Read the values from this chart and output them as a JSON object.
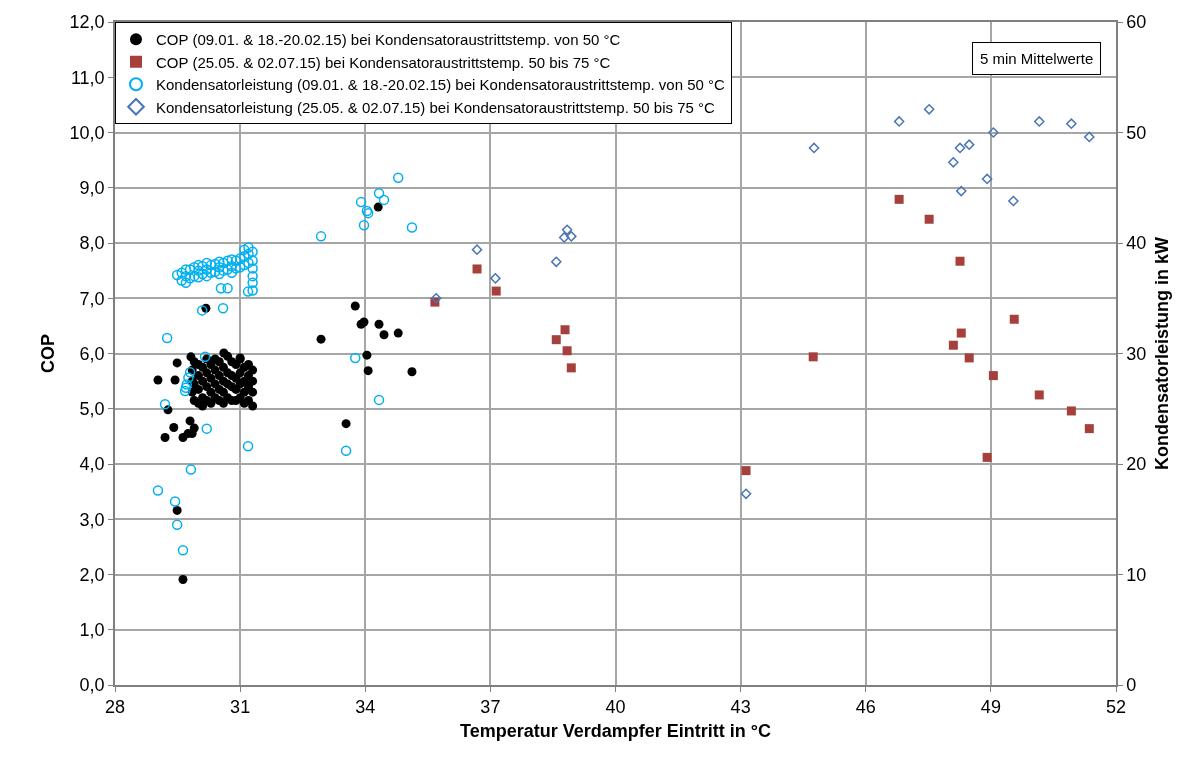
{
  "chart_data": {
    "type": "scatter",
    "xlabel": "Temperatur Verdampfer Eintritt in °C",
    "ylabel": "COP",
    "y2label": "Kondensatorleistung in kW",
    "xlim": [
      28,
      52
    ],
    "xticks": [
      28,
      31,
      34,
      37,
      40,
      43,
      46,
      49,
      52
    ],
    "ylim": [
      0,
      12
    ],
    "yticks": [
      {
        "value": 0,
        "label": "0,0"
      },
      {
        "value": 1,
        "label": "1,0"
      },
      {
        "value": 2,
        "label": "2,0"
      },
      {
        "value": 3,
        "label": "3,0"
      },
      {
        "value": 4,
        "label": "4,0"
      },
      {
        "value": 5,
        "label": "5,0"
      },
      {
        "value": 6,
        "label": "6,0"
      },
      {
        "value": 7,
        "label": "7,0"
      },
      {
        "value": 8,
        "label": "8,0"
      },
      {
        "value": 9,
        "label": "9,0"
      },
      {
        "value": 10,
        "label": "10,0"
      },
      {
        "value": 11,
        "label": "11,0"
      },
      {
        "value": 12,
        "label": "12,0"
      }
    ],
    "y2lim": [
      0,
      60
    ],
    "y2ticks": [
      0,
      10,
      20,
      30,
      40,
      50,
      60
    ],
    "grid": true,
    "legend": "top left",
    "annotations": [
      "5 min Mittelwerte"
    ],
    "series": [
      {
        "name": "COP (09.01. & 18.-20.02.15) bei Kondensatoraustrittstemp. von 50 °C",
        "color": "#000000",
        "marker": "circle",
        "x": [
          29.85,
          29.85,
          29.85,
          29.9,
          29.9,
          29.9,
          30.0,
          30.0,
          30.0,
          30.0,
          30.1,
          30.1,
          30.1,
          30.1,
          30.2,
          30.2,
          30.2,
          30.2,
          30.3,
          30.3,
          30.3,
          30.3,
          30.4,
          30.4,
          30.4,
          30.4,
          30.5,
          30.5,
          30.5,
          30.5,
          30.6,
          30.6,
          30.6,
          30.6,
          30.7,
          30.7,
          30.7,
          30.7,
          30.8,
          30.8,
          30.8,
          30.8,
          30.9,
          30.9,
          30.9,
          30.9,
          31.0,
          31.0,
          31.0,
          31.0,
          31.1,
          31.1,
          31.1,
          31.1,
          31.2,
          31.2,
          31.2,
          31.2,
          31.3,
          31.3,
          31.3,
          31.3,
          29.75,
          29.85,
          29.9,
          29.03,
          29.44,
          29.49,
          29.82,
          30.61,
          31.0,
          29.2,
          29.41,
          29.8,
          29.63,
          29.27,
          29.49,
          29.63,
          30.18,
          34.31,
          33.76,
          33.9,
          33.97,
          34.33,
          34.45,
          34.79,
          32.94,
          34.04,
          34.07,
          35.12,
          33.54
        ],
        "values": [
          5.3,
          5.5,
          5.7,
          5.15,
          5.45,
          5.85,
          5.1,
          5.35,
          5.6,
          5.8,
          5.2,
          5.5,
          5.75,
          5.05,
          5.15,
          5.4,
          5.65,
          5.9,
          5.1,
          5.3,
          5.55,
          5.8,
          5.2,
          5.45,
          5.7,
          5.9,
          5.15,
          5.35,
          5.6,
          5.85,
          5.1,
          5.3,
          5.5,
          5.75,
          5.2,
          5.45,
          5.65,
          5.95,
          5.15,
          5.4,
          5.6,
          5.85,
          5.15,
          5.35,
          5.55,
          5.8,
          5.2,
          5.45,
          5.65,
          5.9,
          5.1,
          5.3,
          5.5,
          5.75,
          5.15,
          5.4,
          5.6,
          5.8,
          5.05,
          5.3,
          5.5,
          5.7,
          4.55,
          4.55,
          4.65,
          5.52,
          5.52,
          5.83,
          5.94,
          6.01,
          5.92,
          4.48,
          4.66,
          4.78,
          4.48,
          4.98,
          3.16,
          1.91,
          6.82,
          8.65,
          6.86,
          6.53,
          6.57,
          6.53,
          6.34,
          6.37,
          6.26,
          5.97,
          5.69,
          5.67,
          4.73
        ]
      },
      {
        "name": "COP (25.05. & 02.07.15) bei Kondensatoraustrittstemp. 50 bis 75 °C",
        "color": "#a5403c",
        "marker": "square",
        "x": [
          35.67,
          36.68,
          37.14,
          38.58,
          38.79,
          38.84,
          38.94,
          43.13,
          44.74,
          46.8,
          47.52,
          48.26,
          48.1,
          48.29,
          48.48,
          49.06,
          49.56,
          50.16,
          50.93,
          51.36,
          48.91
        ],
        "values": [
          6.93,
          7.53,
          7.13,
          6.25,
          6.43,
          6.05,
          5.74,
          3.88,
          5.94,
          8.79,
          8.43,
          7.67,
          6.15,
          6.37,
          5.92,
          5.6,
          6.62,
          5.25,
          4.96,
          4.64,
          4.12
        ]
      },
      {
        "name": "Kondensatorleistung (09.01. & 18.-20.02.15) bei Kondensatoraustrittstemp. von 50 °C",
        "color": "#00b0f0",
        "marker": "circle",
        "axis": "y2",
        "x": [
          29.6,
          29.6,
          29.7,
          29.7,
          29.7,
          29.8,
          29.8,
          29.9,
          29.9,
          30.0,
          30.0,
          30.0,
          30.1,
          30.1,
          30.2,
          30.2,
          30.2,
          30.3,
          30.3,
          30.4,
          30.4,
          30.5,
          30.5,
          30.5,
          30.6,
          30.6,
          30.7,
          30.7,
          30.8,
          30.8,
          30.8,
          30.9,
          30.9,
          31.0,
          31.0,
          31.1,
          31.1,
          31.1,
          31.2,
          31.2,
          31.2,
          31.3,
          31.3,
          31.3,
          31.3,
          31.3,
          31.3,
          29.49,
          30.54,
          30.7,
          31.19,
          30.09,
          30.59,
          29.25,
          30.16,
          29.68,
          29.72,
          29.76,
          29.8,
          29.7,
          29.2,
          30.2,
          31.19,
          29.82,
          29.03,
          29.44,
          29.49,
          29.63,
          34.79,
          34.33,
          34.45,
          33.9,
          34.04,
          34.07,
          33.97,
          35.12,
          32.94,
          33.76,
          34.33,
          33.54
        ],
        "values": [
          36.6,
          37.3,
          36.4,
          37.0,
          37.6,
          36.8,
          37.6,
          37.0,
          37.8,
          36.9,
          37.5,
          38.0,
          37.2,
          37.9,
          37.0,
          37.6,
          38.2,
          37.3,
          38.0,
          37.4,
          38.1,
          37.2,
          37.8,
          38.3,
          37.5,
          38.2,
          37.6,
          38.4,
          37.3,
          37.9,
          38.5,
          37.7,
          38.4,
          37.8,
          38.6,
          38.0,
          38.8,
          39.4,
          38.2,
          39.0,
          39.6,
          35.7,
          36.4,
          37.0,
          37.7,
          38.4,
          39.2,
          37.1,
          35.9,
          35.9,
          35.6,
          33.9,
          34.1,
          31.4,
          29.7,
          26.6,
          27.2,
          27.8,
          28.3,
          26.9,
          25.4,
          23.2,
          21.6,
          19.5,
          17.6,
          16.6,
          14.5,
          12.2,
          45.9,
          44.5,
          43.9,
          43.7,
          42.9,
          42.7,
          41.6,
          41.4,
          40.6,
          29.6,
          25.8,
          21.2
        ]
      },
      {
        "name": "Kondensatorleistung (25.05. & 02.07.15) bei Kondensatoraustrittstemp. 50 bis 75 °C",
        "color": "#4a75b5",
        "marker": "diamond",
        "axis": "y2",
        "x": [
          35.7,
          36.68,
          37.12,
          38.58,
          38.77,
          38.84,
          38.94,
          43.13,
          44.76,
          46.8,
          47.52,
          48.1,
          48.26,
          48.48,
          48.29,
          48.91,
          49.06,
          49.54,
          50.16,
          50.93,
          51.36
        ],
        "values": [
          35.0,
          39.4,
          36.8,
          38.3,
          40.5,
          41.2,
          40.6,
          17.3,
          48.6,
          51.0,
          52.1,
          47.3,
          48.6,
          48.9,
          44.7,
          45.8,
          50.0,
          43.8,
          51.0,
          50.8,
          49.6
        ]
      }
    ]
  }
}
